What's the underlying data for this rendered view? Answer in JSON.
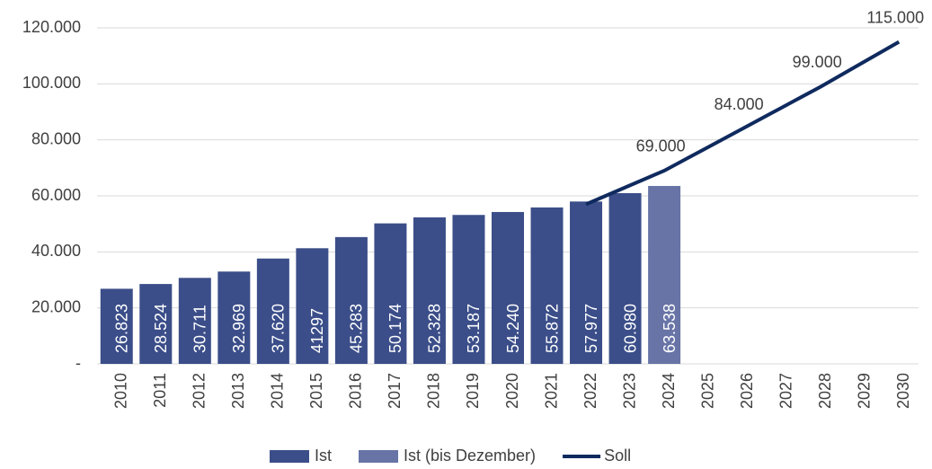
{
  "chart_data": {
    "type": "bar",
    "categories": [
      "2010",
      "2011",
      "2012",
      "2013",
      "2014",
      "2015",
      "2016",
      "2017",
      "2018",
      "2019",
      "2020",
      "2021",
      "2022",
      "2023",
      "2024",
      "2025",
      "2026",
      "2027",
      "2028",
      "2029",
      "2030"
    ],
    "series": [
      {
        "name": "Ist",
        "type": "bar",
        "color": "#3b4e89",
        "values": [
          26823,
          28524,
          30711,
          32969,
          37620,
          41297,
          45283,
          50174,
          52328,
          53187,
          54240,
          55872,
          57977,
          60980,
          null,
          null,
          null,
          null,
          null,
          null,
          null
        ],
        "value_labels": [
          "26.823",
          "28.524",
          "30.711",
          "32.969",
          "37.620",
          "41297",
          "45.283",
          "50.174",
          "52.328",
          "53.187",
          "54.240",
          "55.872",
          "57.977",
          "60.980",
          null,
          null,
          null,
          null,
          null,
          null,
          null
        ]
      },
      {
        "name": "Ist (bis Dezember)",
        "type": "bar",
        "color": "#6874a6",
        "values": [
          null,
          null,
          null,
          null,
          null,
          null,
          null,
          null,
          null,
          null,
          null,
          null,
          null,
          null,
          63538,
          null,
          null,
          null,
          null,
          null,
          null
        ],
        "value_labels": [
          null,
          null,
          null,
          null,
          null,
          null,
          null,
          null,
          null,
          null,
          null,
          null,
          null,
          null,
          "63.538",
          null,
          null,
          null,
          null,
          null,
          null
        ]
      },
      {
        "name": "Soll",
        "type": "line",
        "color": "#0f2a5e",
        "values": [
          null,
          null,
          null,
          null,
          null,
          null,
          null,
          null,
          null,
          null,
          null,
          null,
          57000,
          63000,
          69000,
          76500,
          84000,
          91500,
          99000,
          107000,
          115000
        ],
        "value_labels": [
          null,
          null,
          null,
          null,
          null,
          null,
          null,
          null,
          null,
          null,
          null,
          null,
          null,
          null,
          "69.000",
          null,
          "84.000",
          null,
          "99.000",
          null,
          "115.000"
        ]
      }
    ],
    "ylim": [
      0,
      120000
    ],
    "yticks": [
      {
        "value": 0,
        "label": "-"
      },
      {
        "value": 20000,
        "label": "20.000"
      },
      {
        "value": 40000,
        "label": "40.000"
      },
      {
        "value": 60000,
        "label": "60.000"
      },
      {
        "value": 80000,
        "label": "80.000"
      },
      {
        "value": 100000,
        "label": "100.000"
      },
      {
        "value": 120000,
        "label": "120.000"
      }
    ],
    "grid": true
  }
}
